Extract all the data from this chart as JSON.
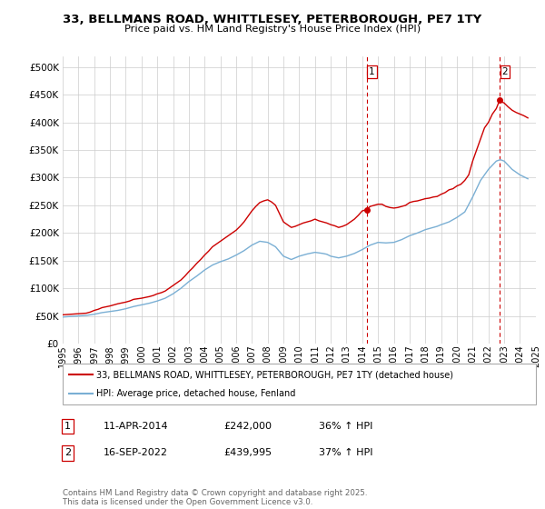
{
  "title": "33, BELLMANS ROAD, WHITTLESEY, PETERBOROUGH, PE7 1TY",
  "subtitle": "Price paid vs. HM Land Registry's House Price Index (HPI)",
  "legend_line1": "33, BELLMANS ROAD, WHITTLESEY, PETERBOROUGH, PE7 1TY (detached house)",
  "legend_line2": "HPI: Average price, detached house, Fenland",
  "annotation1_label": "1",
  "annotation1_date": "11-APR-2014",
  "annotation1_price": "£242,000",
  "annotation1_hpi": "36% ↑ HPI",
  "annotation2_label": "2",
  "annotation2_date": "16-SEP-2022",
  "annotation2_price": "£439,995",
  "annotation2_hpi": "37% ↑ HPI",
  "footer": "Contains HM Land Registry data © Crown copyright and database right 2025.\nThis data is licensed under the Open Government Licence v3.0.",
  "red_line_color": "#cc0000",
  "blue_line_color": "#7aafd4",
  "grid_color": "#cccccc",
  "bg_color": "#ffffff",
  "vline_color": "#cc0000",
  "ylim": [
    0,
    520000
  ],
  "yticks": [
    0,
    50000,
    100000,
    150000,
    200000,
    250000,
    300000,
    350000,
    400000,
    450000,
    500000
  ],
  "red_data_years": [
    1995.0,
    1995.25,
    1995.5,
    1995.75,
    1996.0,
    1996.25,
    1996.5,
    1996.75,
    1997.0,
    1997.25,
    1997.5,
    1997.75,
    1998.0,
    1998.25,
    1998.5,
    1998.75,
    1999.0,
    1999.25,
    1999.5,
    1999.75,
    2000.0,
    2000.25,
    2000.5,
    2000.75,
    2001.0,
    2001.25,
    2001.5,
    2001.75,
    2002.0,
    2002.25,
    2002.5,
    2002.75,
    2003.0,
    2003.25,
    2003.5,
    2003.75,
    2004.0,
    2004.25,
    2004.5,
    2004.75,
    2005.0,
    2005.25,
    2005.5,
    2005.75,
    2006.0,
    2006.25,
    2006.5,
    2006.75,
    2007.0,
    2007.25,
    2007.5,
    2007.75,
    2008.0,
    2008.25,
    2008.5,
    2008.75,
    2009.0,
    2009.25,
    2009.5,
    2009.75,
    2010.0,
    2010.25,
    2010.5,
    2010.75,
    2011.0,
    2011.25,
    2011.5,
    2011.75,
    2012.0,
    2012.25,
    2012.5,
    2012.75,
    2013.0,
    2013.25,
    2013.5,
    2013.75,
    2014.0,
    2014.27,
    2014.5,
    2014.75,
    2015.0,
    2015.25,
    2015.5,
    2015.75,
    2016.0,
    2016.25,
    2016.5,
    2016.75,
    2017.0,
    2017.25,
    2017.5,
    2017.75,
    2018.0,
    2018.25,
    2018.5,
    2018.75,
    2019.0,
    2019.25,
    2019.5,
    2019.75,
    2020.0,
    2020.25,
    2020.5,
    2020.75,
    2021.0,
    2021.25,
    2021.5,
    2021.75,
    2022.0,
    2022.25,
    2022.5,
    2022.71,
    2022.75,
    2023.0,
    2023.25,
    2023.5,
    2023.75,
    2024.0,
    2024.25,
    2024.5
  ],
  "red_data_values": [
    52000,
    52500,
    53000,
    53500,
    54000,
    54500,
    55000,
    57000,
    60000,
    62000,
    65000,
    66500,
    68000,
    70000,
    72000,
    73500,
    75000,
    77000,
    80000,
    81000,
    82000,
    83500,
    85000,
    87000,
    90000,
    92000,
    95000,
    100000,
    105000,
    110000,
    115000,
    122000,
    130000,
    137000,
    145000,
    152000,
    160000,
    167000,
    175000,
    180000,
    185000,
    190000,
    195000,
    200000,
    205000,
    212000,
    220000,
    230000,
    240000,
    248000,
    255000,
    258000,
    260000,
    256000,
    250000,
    235000,
    220000,
    215000,
    210000,
    212000,
    215000,
    218000,
    220000,
    222000,
    225000,
    222000,
    220000,
    218000,
    215000,
    213000,
    210000,
    212000,
    215000,
    220000,
    225000,
    232000,
    240000,
    242000,
    248000,
    250000,
    252000,
    252000,
    248000,
    246000,
    245000,
    246000,
    248000,
    250000,
    255000,
    257000,
    258000,
    260000,
    262000,
    263000,
    265000,
    266000,
    270000,
    273000,
    278000,
    280000,
    285000,
    288000,
    295000,
    305000,
    330000,
    350000,
    370000,
    390000,
    400000,
    415000,
    425000,
    440000,
    438000,
    435000,
    428000,
    422000,
    418000,
    415000,
    412000,
    408000
  ],
  "blue_data_years": [
    1995.0,
    1995.25,
    1995.5,
    1995.75,
    1996.0,
    1996.25,
    1996.5,
    1996.75,
    1997.0,
    1997.25,
    1997.5,
    1997.75,
    1998.0,
    1998.25,
    1998.5,
    1998.75,
    1999.0,
    1999.25,
    1999.5,
    1999.75,
    2000.0,
    2000.25,
    2000.5,
    2000.75,
    2001.0,
    2001.25,
    2001.5,
    2001.75,
    2002.0,
    2002.25,
    2002.5,
    2002.75,
    2003.0,
    2003.25,
    2003.5,
    2003.75,
    2004.0,
    2004.25,
    2004.5,
    2004.75,
    2005.0,
    2005.25,
    2005.5,
    2005.75,
    2006.0,
    2006.25,
    2006.5,
    2006.75,
    2007.0,
    2007.25,
    2007.5,
    2007.75,
    2008.0,
    2008.25,
    2008.5,
    2008.75,
    2009.0,
    2009.25,
    2009.5,
    2009.75,
    2010.0,
    2010.25,
    2010.5,
    2010.75,
    2011.0,
    2011.25,
    2011.5,
    2011.75,
    2012.0,
    2012.25,
    2012.5,
    2012.75,
    2013.0,
    2013.25,
    2013.5,
    2013.75,
    2014.0,
    2014.5,
    2015.0,
    2015.25,
    2015.5,
    2015.75,
    2016.0,
    2016.25,
    2016.5,
    2016.75,
    2017.0,
    2017.25,
    2017.5,
    2017.75,
    2018.0,
    2018.25,
    2018.5,
    2018.75,
    2019.0,
    2019.25,
    2019.5,
    2019.75,
    2020.0,
    2020.25,
    2020.5,
    2020.75,
    2021.0,
    2021.25,
    2021.5,
    2021.75,
    2022.0,
    2022.25,
    2022.5,
    2022.75,
    2023.0,
    2023.25,
    2023.5,
    2023.75,
    2024.0,
    2024.25,
    2024.5
  ],
  "blue_data_values": [
    48000,
    48500,
    49000,
    49500,
    50000,
    50500,
    51000,
    52000,
    53000,
    54500,
    56000,
    57000,
    58000,
    59000,
    60000,
    61500,
    63000,
    65000,
    67000,
    68500,
    70000,
    71500,
    73000,
    75000,
    77000,
    79500,
    82000,
    86000,
    90000,
    95000,
    100000,
    106000,
    112000,
    117000,
    122000,
    127500,
    133000,
    137500,
    142000,
    145000,
    148000,
    150500,
    153000,
    156500,
    160000,
    164000,
    168000,
    173000,
    178000,
    181500,
    185000,
    184000,
    183000,
    179000,
    175000,
    166500,
    158000,
    155000,
    152000,
    155000,
    158000,
    160000,
    162000,
    163500,
    165000,
    164000,
    163000,
    161500,
    158000,
    156500,
    155000,
    156500,
    158000,
    160500,
    163000,
    166500,
    170000,
    178000,
    183000,
    182500,
    182000,
    182500,
    183000,
    185500,
    188000,
    191500,
    195000,
    197500,
    200000,
    203000,
    206000,
    208000,
    210000,
    212000,
    215000,
    217500,
    220000,
    224000,
    228000,
    233000,
    238000,
    251500,
    265000,
    280000,
    295000,
    305000,
    315000,
    322500,
    330000,
    332500,
    330000,
    322500,
    315000,
    310000,
    305000,
    301500,
    298000
  ],
  "sale1_year": 2014.27,
  "sale1_value": 242000,
  "sale2_year": 2022.71,
  "sale2_value": 439995,
  "xmin": 1995,
  "xmax": 2025,
  "xticks": [
    1995,
    1996,
    1997,
    1998,
    1999,
    2000,
    2001,
    2002,
    2003,
    2004,
    2005,
    2006,
    2007,
    2008,
    2009,
    2010,
    2011,
    2012,
    2013,
    2014,
    2015,
    2016,
    2017,
    2018,
    2019,
    2020,
    2021,
    2022,
    2023,
    2024,
    2025
  ]
}
